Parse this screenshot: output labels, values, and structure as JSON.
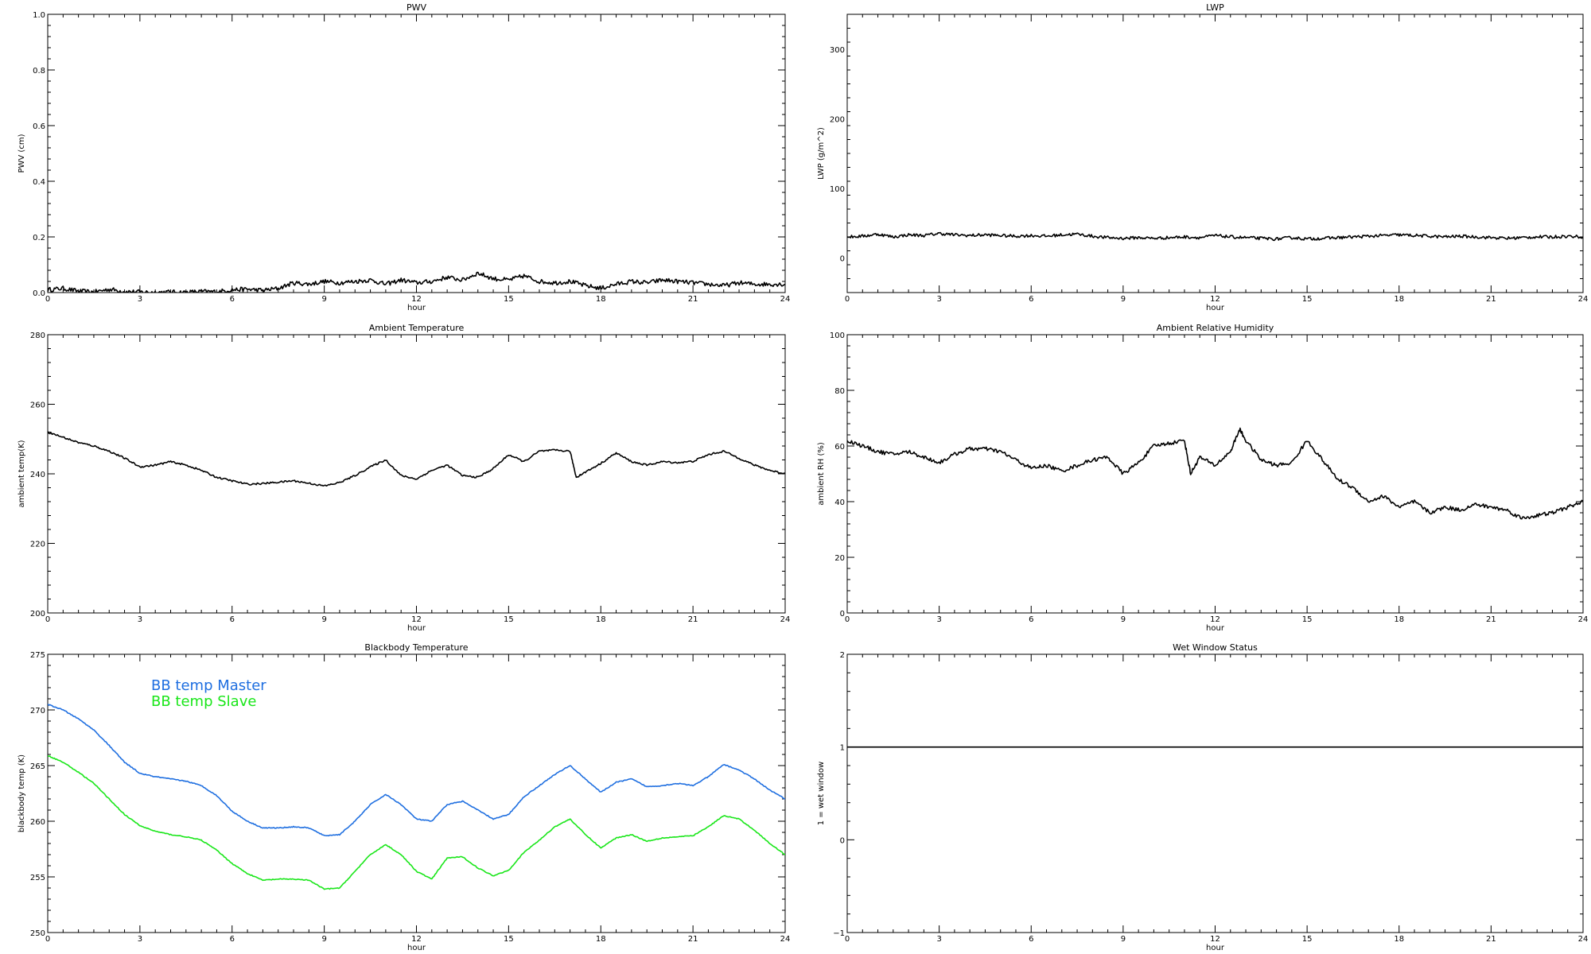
{
  "chart_data": [
    {
      "type": "line",
      "title": "PWV",
      "xlabel": "hour",
      "ylabel": "PWV (cm)",
      "xlim": [
        0,
        24
      ],
      "ylim": [
        0,
        1.0
      ],
      "x_ticks": [
        0,
        3,
        6,
        9,
        12,
        15,
        18,
        21,
        24
      ],
      "y_ticks": [
        0.0,
        0.2,
        0.4,
        0.6,
        0.8,
        1.0
      ],
      "y_tick_labels": [
        "0.0",
        "0.2",
        "0.4",
        "0.6",
        "0.8",
        "1.0"
      ],
      "noise": 0.008,
      "series": [
        {
          "color": "#000000",
          "x": [
            0,
            0.5,
            1,
            1.5,
            2,
            2.5,
            3,
            3.5,
            4,
            4.5,
            5,
            5.5,
            6,
            6.5,
            7,
            7.5,
            8,
            8.5,
            9,
            9.5,
            10,
            10.5,
            11,
            11.5,
            12,
            12.5,
            13,
            13.5,
            14,
            14.5,
            15,
            15.5,
            16,
            16.5,
            17,
            17.5,
            18,
            18.5,
            19,
            19.5,
            20,
            20.5,
            21,
            21.5,
            22,
            22.5,
            23,
            23.5,
            24
          ],
          "y": [
            0.01,
            0.015,
            0.005,
            0.002,
            0.012,
            0.004,
            0.002,
            0.001,
            0.002,
            0.001,
            0.004,
            0.003,
            0.01,
            0.012,
            0.008,
            0.015,
            0.035,
            0.03,
            0.04,
            0.035,
            0.04,
            0.045,
            0.03,
            0.045,
            0.035,
            0.04,
            0.055,
            0.045,
            0.07,
            0.05,
            0.045,
            0.06,
            0.04,
            0.035,
            0.04,
            0.025,
            0.015,
            0.03,
            0.04,
            0.035,
            0.045,
            0.04,
            0.035,
            0.03,
            0.025,
            0.035,
            0.03,
            0.03,
            0.03
          ]
        }
      ]
    },
    {
      "type": "line",
      "title": "LWP",
      "xlabel": "hour",
      "ylabel": "LWP (g/m^2)",
      "xlim": [
        0,
        24
      ],
      "ylim": [
        -50,
        350
      ],
      "x_ticks": [
        0,
        3,
        6,
        9,
        12,
        15,
        18,
        21,
        24
      ],
      "y_ticks": [
        0,
        100,
        200,
        300
      ],
      "y_tick_labels": [
        "0",
        "100",
        "200",
        "300"
      ],
      "noise": 2.2,
      "series": [
        {
          "color": "#000000",
          "x": [
            0,
            0.5,
            1,
            1.5,
            2,
            2.5,
            3,
            3.5,
            4,
            4.5,
            5,
            5.5,
            6,
            6.5,
            7,
            7.5,
            8,
            8.5,
            9,
            9.5,
            10,
            10.5,
            11,
            11.5,
            12,
            12.5,
            13,
            13.5,
            14,
            14.5,
            15,
            15.5,
            16,
            16.5,
            17,
            17.5,
            18,
            18.5,
            19,
            19.5,
            20,
            20.5,
            21,
            21.5,
            22,
            22.5,
            23,
            23.5,
            24
          ],
          "y": [
            30,
            31,
            34,
            30,
            33,
            32,
            35,
            33,
            32,
            33,
            32,
            31,
            32,
            31,
            33,
            34,
            31,
            29,
            28,
            29,
            28,
            29,
            30,
            29,
            32,
            30,
            29,
            28,
            27,
            29,
            27,
            28,
            29,
            30,
            31,
            32,
            33,
            32,
            31,
            30,
            31,
            30,
            29,
            28,
            29,
            30,
            30,
            31,
            30
          ]
        }
      ]
    },
    {
      "type": "line",
      "title": "Ambient Temperature",
      "xlabel": "hour",
      "ylabel": "ambient temp(K)",
      "xlim": [
        0,
        24
      ],
      "ylim": [
        200,
        280
      ],
      "x_ticks": [
        0,
        3,
        6,
        9,
        12,
        15,
        18,
        21,
        24
      ],
      "y_ticks": [
        200,
        220,
        240,
        260,
        280
      ],
      "y_tick_labels": [
        "200",
        "220",
        "240",
        "260",
        "280"
      ],
      "noise": 0.25,
      "series": [
        {
          "color": "#000000",
          "x": [
            0,
            0.5,
            1,
            1.5,
            2,
            2.5,
            3,
            3.5,
            4,
            4.5,
            5,
            5.5,
            6,
            6.5,
            7,
            7.5,
            8,
            8.5,
            9,
            9.5,
            10,
            10.5,
            11,
            11.5,
            12,
            12.5,
            13,
            13.5,
            14,
            14.5,
            15,
            15.5,
            16,
            16.5,
            17,
            17.2,
            17.5,
            18,
            18.5,
            19,
            19.5,
            20,
            20.5,
            21,
            21.5,
            22,
            22.5,
            23,
            23.5,
            24
          ],
          "y": [
            252,
            250.5,
            249,
            248,
            246.5,
            244.5,
            242,
            242.5,
            243.5,
            242.5,
            241,
            239,
            238,
            237,
            237.2,
            237.6,
            238,
            237.3,
            236.5,
            237.5,
            239.5,
            242,
            244,
            239.5,
            238.5,
            241,
            242.5,
            239.5,
            239,
            241.5,
            245.5,
            243.5,
            246.5,
            246.8,
            246.5,
            239,
            240.5,
            243,
            246,
            243.5,
            242.5,
            243.5,
            243.2,
            243.6,
            245.5,
            246.5,
            244.5,
            242.5,
            241,
            240
          ]
        }
      ]
    },
    {
      "type": "line",
      "title": "Ambient Relative Humidity",
      "xlabel": "hour",
      "ylabel": "ambient RH (%)",
      "xlim": [
        0,
        24
      ],
      "ylim": [
        0,
        100
      ],
      "x_ticks": [
        0,
        3,
        6,
        9,
        12,
        15,
        18,
        21,
        24
      ],
      "y_ticks": [
        0,
        20,
        40,
        60,
        80,
        100
      ],
      "y_tick_labels": [
        "0",
        "20",
        "40",
        "60",
        "80",
        "100"
      ],
      "noise": 0.7,
      "series": [
        {
          "color": "#000000",
          "x": [
            0,
            0.5,
            1,
            1.5,
            2,
            2.5,
            3,
            3.5,
            4,
            4.5,
            5,
            5.5,
            6,
            6.5,
            7,
            7.5,
            8,
            8.5,
            9,
            9.5,
            10,
            10.5,
            11,
            11.2,
            11.5,
            12,
            12.5,
            12.8,
            13,
            13.5,
            14,
            14.5,
            15,
            15.5,
            16,
            16.5,
            17,
            17.5,
            18,
            18.5,
            19,
            19.5,
            20,
            20.5,
            21,
            21.5,
            22,
            22.5,
            23,
            23.5,
            24
          ],
          "y": [
            62,
            60,
            58,
            57,
            58,
            56,
            54,
            57,
            59,
            59,
            58,
            55,
            52,
            53,
            51,
            53,
            55,
            56,
            50,
            54,
            60,
            61,
            62,
            50,
            56,
            53,
            58,
            66,
            62,
            55,
            53,
            54,
            62,
            55,
            48,
            45,
            40,
            42,
            38,
            40,
            36,
            38,
            37,
            39,
            38,
            37,
            34,
            35,
            36,
            38,
            40
          ]
        }
      ]
    },
    {
      "type": "line",
      "title": "Blackbody Temperature",
      "xlabel": "hour",
      "ylabel": "blackbody temp (K)",
      "xlim": [
        0,
        24
      ],
      "ylim": [
        250,
        275
      ],
      "x_ticks": [
        0,
        3,
        6,
        9,
        12,
        15,
        18,
        21,
        24
      ],
      "y_ticks": [
        250,
        255,
        260,
        265,
        270,
        275
      ],
      "y_tick_labels": [
        "250",
        "255",
        "260",
        "265",
        "270",
        "275"
      ],
      "noise": 0.04,
      "legend": "top-left",
      "series": [
        {
          "name": "BB temp Master",
          "color": "#1f6fe0",
          "x": [
            0,
            0.5,
            1,
            1.5,
            2,
            2.5,
            3,
            3.5,
            4,
            4.5,
            5,
            5.5,
            6,
            6.5,
            7,
            7.5,
            8,
            8.5,
            9,
            9.5,
            10,
            10.5,
            11,
            11.5,
            12,
            12.5,
            13,
            13.5,
            14,
            14.5,
            15,
            15.5,
            16,
            16.5,
            17,
            17.5,
            18,
            18.5,
            19,
            19.5,
            20,
            20.5,
            21,
            21.5,
            22,
            22.5,
            23,
            23.5,
            24
          ],
          "y": [
            270.5,
            270,
            269.2,
            268.2,
            266.8,
            265.3,
            264.3,
            264,
            263.8,
            263.6,
            263.2,
            262.3,
            260.9,
            260,
            259.4,
            259.4,
            259.5,
            259.4,
            258.7,
            258.8,
            260,
            261.5,
            262.4,
            261.5,
            260.2,
            260,
            261.5,
            261.8,
            261,
            260.2,
            260.6,
            262.2,
            263.2,
            264.2,
            265,
            263.8,
            262.6,
            263.5,
            263.8,
            263.1,
            263.2,
            263.4,
            263.2,
            264,
            265.1,
            264.6,
            263.8,
            262.8,
            262
          ]
        },
        {
          "name": "BB temp Slave",
          "color": "#19e619",
          "x": [
            0,
            0.5,
            1,
            1.5,
            2,
            2.5,
            3,
            3.5,
            4,
            4.5,
            5,
            5.5,
            6,
            6.5,
            7,
            7.5,
            8,
            8.5,
            9,
            9.5,
            10,
            10.5,
            11,
            11.5,
            12,
            12.5,
            13,
            13.5,
            14,
            14.5,
            15,
            15.5,
            16,
            16.5,
            17,
            17.5,
            18,
            18.5,
            19,
            19.5,
            20,
            20.5,
            21,
            21.5,
            22,
            22.5,
            23,
            23.5,
            24
          ],
          "y": [
            265.9,
            265.3,
            264.4,
            263.4,
            262,
            260.6,
            259.6,
            259.1,
            258.8,
            258.6,
            258.3,
            257.4,
            256.2,
            255.3,
            254.7,
            254.8,
            254.8,
            254.7,
            253.9,
            254,
            255.5,
            257,
            257.9,
            257,
            255.5,
            254.8,
            256.7,
            256.8,
            255.8,
            255.1,
            255.6,
            257.2,
            258.3,
            259.5,
            260.2,
            258.8,
            257.6,
            258.5,
            258.8,
            258.2,
            258.5,
            258.6,
            258.7,
            259.5,
            260.5,
            260.2,
            259.2,
            258,
            257
          ]
        }
      ]
    },
    {
      "type": "line",
      "title": "Wet Window Status",
      "xlabel": "hour",
      "ylabel": "1 = wet window",
      "xlim": [
        0,
        24
      ],
      "ylim": [
        -1,
        2
      ],
      "x_ticks": [
        0,
        3,
        6,
        9,
        12,
        15,
        18,
        21,
        24
      ],
      "y_ticks": [
        -1,
        0,
        1,
        2
      ],
      "y_tick_labels": [
        "−1",
        "0",
        "1",
        "2"
      ],
      "noise": 0,
      "series": [
        {
          "color": "#000000",
          "x": [
            0,
            24
          ],
          "y": [
            1,
            1
          ]
        }
      ]
    }
  ]
}
